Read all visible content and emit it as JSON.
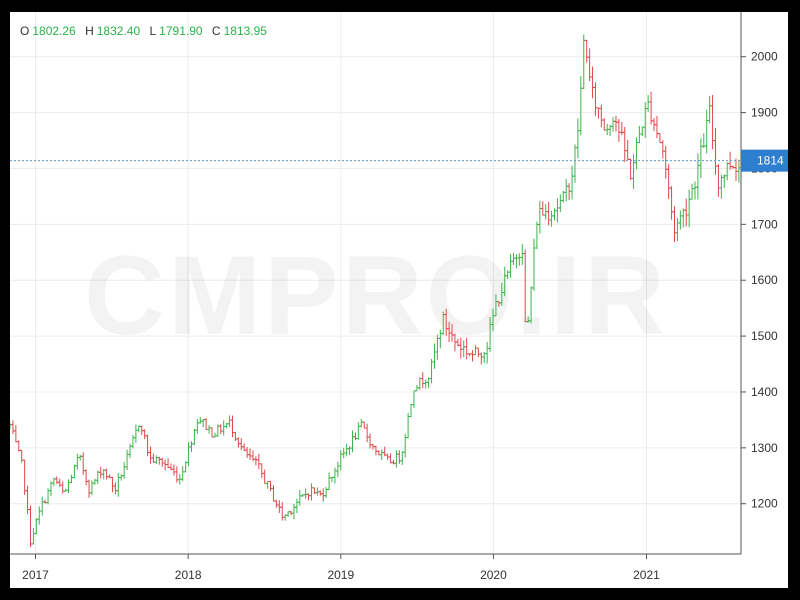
{
  "ohlc_readout": {
    "open_label": "O",
    "open": "1802.26",
    "high_label": "H",
    "high": "1832.40",
    "low_label": "L",
    "low": "1791.90",
    "close_label": "C",
    "close": "1813.95"
  },
  "watermark": "CMPRO.IR",
  "colors": {
    "up": "#3cb44b",
    "down": "#e0474c",
    "last_price_bg": "#2f7fd0",
    "last_price_line": "#5b9bd5"
  },
  "chart_data": {
    "type": "ohlc",
    "xlabel": "",
    "ylabel": "",
    "ylim": [
      1110,
      2080
    ],
    "yticks": [
      1200,
      1300,
      1400,
      1500,
      1600,
      1700,
      1800,
      1900,
      2000
    ],
    "xticks": [
      "2017",
      "2018",
      "2019",
      "2020",
      "2021"
    ],
    "x_range": [
      "2016-11-01",
      "2021-08-15"
    ],
    "last_price": 1814,
    "last_price_label": "1814",
    "grid": true,
    "path_points": [
      [
        "2016-11-01",
        1340
      ],
      [
        "2016-12-01",
        1265
      ],
      [
        "2016-12-20",
        1135
      ],
      [
        "2017-01-15",
        1195
      ],
      [
        "2017-02-15",
        1245
      ],
      [
        "2017-03-10",
        1215
      ],
      [
        "2017-04-15",
        1285
      ],
      [
        "2017-05-10",
        1225
      ],
      [
        "2017-06-10",
        1265
      ],
      [
        "2017-07-10",
        1225
      ],
      [
        "2017-08-10",
        1285
      ],
      [
        "2017-09-08",
        1350
      ],
      [
        "2017-10-01",
        1280
      ],
      [
        "2017-11-01",
        1275
      ],
      [
        "2017-12-12",
        1245
      ],
      [
        "2018-01-25",
        1355
      ],
      [
        "2018-03-01",
        1325
      ],
      [
        "2018-04-10",
        1345
      ],
      [
        "2018-05-15",
        1290
      ],
      [
        "2018-06-15",
        1270
      ],
      [
        "2018-07-15",
        1225
      ],
      [
        "2018-08-16",
        1175
      ],
      [
        "2018-09-15",
        1200
      ],
      [
        "2018-10-20",
        1225
      ],
      [
        "2018-11-15",
        1215
      ],
      [
        "2018-12-31",
        1280
      ],
      [
        "2019-02-20",
        1340
      ],
      [
        "2019-03-20",
        1300
      ],
      [
        "2019-04-25",
        1275
      ],
      [
        "2019-05-25",
        1285
      ],
      [
        "2019-06-25",
        1410
      ],
      [
        "2019-08-01",
        1430
      ],
      [
        "2019-09-01",
        1530
      ],
      [
        "2019-10-01",
        1490
      ],
      [
        "2019-11-15",
        1465
      ],
      [
        "2019-12-15",
        1480
      ],
      [
        "2020-01-08",
        1560
      ],
      [
        "2020-02-20",
        1640
      ],
      [
        "2020-03-10",
        1660
      ],
      [
        "2020-03-19",
        1480
      ],
      [
        "2020-04-15",
        1720
      ],
      [
        "2020-05-15",
        1725
      ],
      [
        "2020-06-15",
        1740
      ],
      [
        "2020-07-10",
        1800
      ],
      [
        "2020-07-25",
        1900
      ],
      [
        "2020-08-06",
        2050
      ],
      [
        "2020-08-20",
        1940
      ],
      [
        "2020-09-25",
        1870
      ],
      [
        "2020-10-15",
        1900
      ],
      [
        "2020-11-25",
        1790
      ],
      [
        "2020-12-20",
        1880
      ],
      [
        "2021-01-06",
        1915
      ],
      [
        "2021-02-10",
        1830
      ],
      [
        "2021-03-08",
        1690
      ],
      [
        "2021-04-05",
        1730
      ],
      [
        "2021-05-01",
        1790
      ],
      [
        "2021-06-01",
        1900
      ],
      [
        "2021-06-20",
        1775
      ],
      [
        "2021-07-20",
        1810
      ],
      [
        "2021-08-09",
        1805
      ]
    ]
  }
}
